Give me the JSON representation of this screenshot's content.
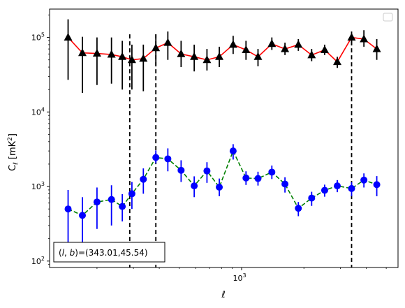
{
  "chart_data": {
    "type": "line",
    "xlabel": "ℓ",
    "ylabel": "Cℓ  [mK²]",
    "xscale": "log",
    "yscale": "log",
    "xlim": [
      118,
      5700
    ],
    "ylim": [
      82,
      240000
    ],
    "x_tick_labels": [
      {
        "value": 1000,
        "mantissa": "10",
        "exponent": "3"
      }
    ],
    "y_tick_labels": [
      {
        "value": 100,
        "mantissa": "10",
        "exponent": "2"
      },
      {
        "value": 1000,
        "mantissa": "10",
        "exponent": "3"
      },
      {
        "value": 10000,
        "mantissa": "10",
        "exponent": "4"
      },
      {
        "value": 100000,
        "mantissa": "10",
        "exponent": "5"
      }
    ],
    "vertical_lines": [
      288,
      385,
      3400
    ],
    "legend": {
      "placement": "top-right",
      "entries": []
    },
    "annotation": "(l, b)=(343.01,45.54)",
    "series": [
      {
        "color": "#ff0000",
        "marker": "triangle",
        "marker_color": "#000000",
        "errorbar_color": "#000000",
        "linestyle": "solid",
        "x": [
          145,
          170,
          200,
          235,
          265,
          295,
          335,
          385,
          440,
          510,
          590,
          680,
          780,
          910,
          1050,
          1200,
          1400,
          1620,
          1880,
          2180,
          2520,
          2900,
          3400,
          3900,
          4500
        ],
        "y": [
          100000,
          62000,
          61000,
          59000,
          55000,
          50000,
          52000,
          72000,
          85000,
          60000,
          55000,
          50000,
          55000,
          80000,
          68000,
          55000,
          82000,
          70000,
          80000,
          58000,
          68000,
          47000,
          100000,
          95000,
          70000
        ],
        "err_low": [
          73000,
          44000,
          38000,
          35000,
          35000,
          30000,
          33000,
          30000,
          35000,
          20000,
          20000,
          14000,
          15000,
          20000,
          18000,
          14000,
          14000,
          12000,
          14000,
          10000,
          10000,
          8000,
          20000,
          20000,
          20000
        ],
        "err_high": [
          75000,
          40000,
          39000,
          41000,
          35000,
          30000,
          28000,
          38000,
          35000,
          30000,
          25000,
          20000,
          20000,
          25000,
          22000,
          15000,
          18000,
          15000,
          15000,
          12000,
          12000,
          8000,
          20000,
          30000,
          25000
        ]
      },
      {
        "color": "#008000",
        "marker": "circle",
        "marker_color": "#0000ff",
        "errorbar_color": "#0000ff",
        "linestyle": "dashed",
        "x": [
          145,
          170,
          200,
          235,
          265,
          295,
          335,
          385,
          440,
          510,
          590,
          680,
          780,
          910,
          1050,
          1200,
          1400,
          1620,
          1880,
          2180,
          2520,
          2900,
          3400,
          3900,
          4500
        ],
        "y": [
          500,
          410,
          620,
          670,
          540,
          800,
          1250,
          2450,
          2350,
          1650,
          1020,
          1620,
          980,
          3000,
          1300,
          1280,
          1560,
          1080,
          510,
          700,
          890,
          1020,
          940,
          1220,
          1060
        ],
        "err_low": [
          380,
          300,
          350,
          370,
          200,
          300,
          450,
          400,
          750,
          500,
          300,
          500,
          240,
          700,
          250,
          250,
          300,
          250,
          110,
          150,
          160,
          180,
          200,
          250,
          320
        ],
        "err_high": [
          400,
          310,
          350,
          370,
          250,
          350,
          500,
          600,
          900,
          600,
          350,
          500,
          300,
          700,
          300,
          300,
          350,
          250,
          110,
          150,
          170,
          200,
          200,
          280,
          320
        ]
      }
    ]
  }
}
